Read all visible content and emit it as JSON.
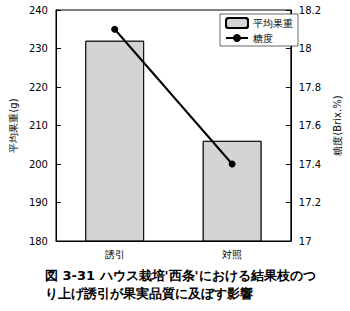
{
  "chart_data": {
    "type": "bar",
    "title": "図 3-31 ハウス栽培'西条'における結果枝のつ\nり上げ誘引が果実品質に及ぼす影響",
    "categories": [
      "誘引",
      "対照"
    ],
    "series": [
      {
        "name": "平均果重",
        "type": "bar",
        "color": "#d4d4d4",
        "values": [
          232,
          206
        ]
      },
      {
        "name": "糖度",
        "type": "line",
        "axis": "y2",
        "color": "#000000",
        "marker": "circle",
        "values": [
          18.1,
          17.4
        ]
      }
    ],
    "ylabel": "平均果重(g)",
    "y2label": "糖度(Brix.%)",
    "ylim": [
      180,
      240
    ],
    "yticks": [
      180,
      190,
      200,
      210,
      220,
      230,
      240
    ],
    "y2lim": [
      17,
      18.2
    ],
    "y2ticks": [
      17,
      17.2,
      17.4,
      17.6,
      17.8,
      18,
      18.2
    ],
    "grid": false,
    "legend": "upper right"
  }
}
